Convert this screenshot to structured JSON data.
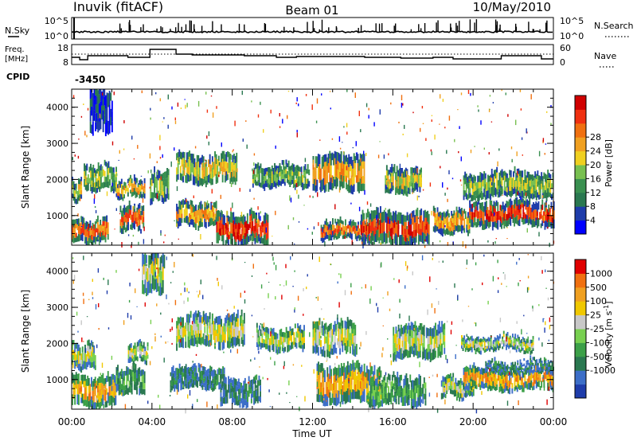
{
  "header": {
    "station": "Inuvik (fitACF)",
    "beam": "Beam 01",
    "date": "10/May/2010"
  },
  "top_panels": {
    "nsky": {
      "label": "N.Sky",
      "tick_top": "10^5",
      "tick_bottom": "10^0"
    },
    "nsearch": {
      "label": "N.Search",
      "tick_top": "10^5",
      "tick_bottom": "10^0"
    },
    "freq": {
      "label_line1": "Freq.",
      "label_line2": "[MHz]",
      "tick_top": "18",
      "tick_bottom": "8",
      "ylim": [
        8,
        18
      ]
    },
    "nave": {
      "label": "Nave",
      "tick_top": "60",
      "tick_bottom": "0"
    },
    "cpid": {
      "label": "CPID",
      "value": "-3450"
    }
  },
  "chart_data": [
    {
      "type": "heatmap",
      "name": "power",
      "ylabel": "Slant Range [km]",
      "ylim": [
        180,
        4500
      ],
      "yticks": [
        "1000",
        "2000",
        "3000",
        "4000"
      ],
      "xlim": [
        0,
        24
      ],
      "colorbar": {
        "label": "Power [dB]",
        "ticks": [
          "4",
          "8",
          "12",
          "16",
          "20",
          "24",
          "28"
        ],
        "colors": [
          "#0000ff",
          "#1e3caa",
          "#2a7850",
          "#3a9050",
          "#78c050",
          "#f0d020",
          "#f0a020",
          "#f07010",
          "#f03010",
          "#d00000"
        ]
      },
      "bands": [
        {
          "t0": 0.0,
          "t1": 1.8,
          "r0": 250,
          "r1": 900,
          "level": 7
        },
        {
          "t0": 0.0,
          "t1": 0.5,
          "r0": 1400,
          "r1": 2000,
          "level": 5
        },
        {
          "t0": 0.6,
          "t1": 2.2,
          "r0": 1700,
          "r1": 2400,
          "level": 4
        },
        {
          "t0": 2.2,
          "t1": 3.6,
          "r0": 1500,
          "r1": 2000,
          "level": 6
        },
        {
          "t0": 2.4,
          "t1": 3.6,
          "r0": 600,
          "r1": 1300,
          "level": 7
        },
        {
          "t0": 3.9,
          "t1": 4.8,
          "r0": 1400,
          "r1": 2200,
          "level": 4
        },
        {
          "t0": 5.2,
          "t1": 7.2,
          "r0": 700,
          "r1": 1350,
          "level": 6
        },
        {
          "t0": 5.2,
          "t1": 8.2,
          "r0": 1900,
          "r1": 2700,
          "level": 5
        },
        {
          "t0": 7.2,
          "t1": 9.8,
          "r0": 200,
          "r1": 1050,
          "level": 8
        },
        {
          "t0": 9.0,
          "t1": 11.8,
          "r0": 1800,
          "r1": 2400,
          "level": 4
        },
        {
          "t0": 12.0,
          "t1": 14.6,
          "r0": 1700,
          "r1": 2700,
          "level": 6
        },
        {
          "t0": 12.4,
          "t1": 15.5,
          "r0": 350,
          "r1": 850,
          "level": 7
        },
        {
          "t0": 14.4,
          "t1": 17.8,
          "r0": 200,
          "r1": 1100,
          "level": 8
        },
        {
          "t0": 15.6,
          "t1": 17.4,
          "r0": 1600,
          "r1": 2300,
          "level": 5
        },
        {
          "t0": 18.0,
          "t1": 19.8,
          "r0": 500,
          "r1": 1150,
          "level": 6
        },
        {
          "t0": 19.8,
          "t1": 24.0,
          "r0": 700,
          "r1": 1400,
          "level": 8
        },
        {
          "t0": 19.5,
          "t1": 24.0,
          "r0": 1500,
          "r1": 2200,
          "level": 4
        },
        {
          "t0": 0.9,
          "t1": 2.0,
          "r0": 3300,
          "r1": 4500,
          "level": 1
        }
      ]
    },
    {
      "type": "heatmap",
      "name": "velocity",
      "ylabel": "Slant Range [km]",
      "ylim": [
        180,
        4500
      ],
      "yticks": [
        "1000",
        "2000",
        "3000",
        "4000"
      ],
      "xlim": [
        0,
        24
      ],
      "xticks": [
        "00:00",
        "04:00",
        "08:00",
        "12:00",
        "16:00",
        "20:00",
        "00:00"
      ],
      "xlabel": "Time UT",
      "colorbar": {
        "label": "Velocity [m s",
        "label_sup": "-1",
        "label_end": "]",
        "ticks": [
          "1000",
          "500",
          "100",
          "25",
          "-25",
          "-100",
          "-500",
          "-1000"
        ],
        "colors": [
          "#1e3caa",
          "#3c6ec8",
          "#2a7850",
          "#3ca048",
          "#78d050",
          "#c8c8c8",
          "#f0c800",
          "#f0a020",
          "#f07010",
          "#e00000"
        ]
      },
      "bands": [
        {
          "t0": 0.0,
          "t1": 2.2,
          "r0": 250,
          "r1": 1100,
          "level": 7
        },
        {
          "t0": 0.0,
          "t1": 1.2,
          "r0": 1300,
          "r1": 2000,
          "level": 5
        },
        {
          "t0": 2.2,
          "t1": 3.6,
          "r0": 600,
          "r1": 1300,
          "level": 3
        },
        {
          "t0": 2.8,
          "t1": 3.8,
          "r0": 1500,
          "r1": 2000,
          "level": 5
        },
        {
          "t0": 4.9,
          "t1": 7.6,
          "r0": 750,
          "r1": 1350,
          "level": 2
        },
        {
          "t0": 5.2,
          "t1": 8.6,
          "r0": 1900,
          "r1": 2800,
          "level": 5
        },
        {
          "t0": 7.4,
          "t1": 9.4,
          "r0": 300,
          "r1": 1000,
          "level": 2
        },
        {
          "t0": 9.2,
          "t1": 11.6,
          "r0": 1800,
          "r1": 2400,
          "level": 5
        },
        {
          "t0": 12.0,
          "t1": 14.2,
          "r0": 1700,
          "r1": 2600,
          "level": 5
        },
        {
          "t0": 12.2,
          "t1": 15.4,
          "r0": 350,
          "r1": 1400,
          "level": 7
        },
        {
          "t0": 14.8,
          "t1": 17.6,
          "r0": 300,
          "r1": 1100,
          "level": 3
        },
        {
          "t0": 16.0,
          "t1": 18.6,
          "r0": 1600,
          "r1": 2500,
          "level": 5
        },
        {
          "t0": 18.4,
          "t1": 20.0,
          "r0": 500,
          "r1": 1050,
          "level": 5
        },
        {
          "t0": 19.5,
          "t1": 24.0,
          "r0": 700,
          "r1": 1300,
          "level": 7
        },
        {
          "t0": 20.6,
          "t1": 24.0,
          "r0": 1200,
          "r1": 1500,
          "level": 2
        },
        {
          "t0": 19.4,
          "t1": 23.0,
          "r0": 1800,
          "r1": 2200,
          "level": 5
        },
        {
          "t0": 3.5,
          "t1": 4.6,
          "r0": 3400,
          "r1": 4500,
          "level": 5
        }
      ]
    }
  ]
}
